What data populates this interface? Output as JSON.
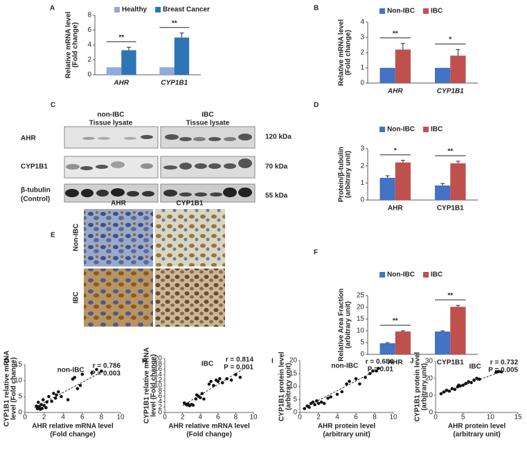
{
  "chart_data": [
    {
      "type": "bar",
      "panel": "A",
      "ylabel": [
        "Relative mRNA level",
        "(Fold change)"
      ],
      "categories": [
        "AHR",
        "CYP1B1"
      ],
      "series": [
        {
          "name": "Healthy",
          "color": "#8faadc",
          "values": [
            1,
            1
          ]
        },
        {
          "name": "Breast Cancer",
          "color": "#2e75b6",
          "values": [
            3.3,
            5.0
          ],
          "errors": [
            0.4,
            0.6
          ]
        }
      ],
      "significance": [
        "**",
        "**"
      ],
      "ylim": [
        0,
        8
      ],
      "yticks": [
        0,
        2,
        4,
        6,
        8
      ]
    },
    {
      "type": "bar",
      "panel": "B",
      "ylabel": [
        "Relative mRNA  level",
        "(Fold change)"
      ],
      "categories": [
        "AHR",
        "CYP1B1"
      ],
      "series": [
        {
          "name": "Non-IBC",
          "color": "#4472c4",
          "values": [
            1,
            1
          ]
        },
        {
          "name": "IBC",
          "color": "#c0504d",
          "values": [
            2.2,
            1.8
          ],
          "errors": [
            0.4,
            0.4
          ]
        }
      ],
      "significance": [
        "**",
        "*"
      ],
      "ylim": [
        0,
        4
      ],
      "yticks": [
        0,
        1,
        2,
        3,
        4
      ]
    },
    {
      "type": "bar",
      "panel": "D",
      "ylabel": [
        "Protein/β-tubulin",
        "(arbitrary unit)"
      ],
      "categories": [
        "AHR",
        "CYP1B1"
      ],
      "series": [
        {
          "name": "Non-IBC",
          "color": "#4472c4",
          "values": [
            1.3,
            0.85
          ],
          "errors": [
            0.12,
            0.12
          ]
        },
        {
          "name": "IBC",
          "color": "#c0504d",
          "values": [
            2.2,
            2.15
          ],
          "errors": [
            0.12,
            0.12
          ]
        }
      ],
      "significance": [
        "*",
        "**"
      ],
      "ylim": [
        0,
        3
      ],
      "yticks": [
        0,
        1,
        2,
        3
      ]
    },
    {
      "type": "bar",
      "panel": "F",
      "ylabel": [
        "Relative Area Fraction",
        "(arbitrary unit)"
      ],
      "categories": [
        "AHR",
        "CYP1B1"
      ],
      "series": [
        {
          "name": "Non-IBC",
          "color": "#4472c4",
          "values": [
            4.7,
            9.7
          ],
          "errors": [
            0.3,
            0.3
          ]
        },
        {
          "name": "IBC",
          "color": "#c0504d",
          "values": [
            9.7,
            20.2
          ],
          "errors": [
            0.3,
            0.6
          ]
        }
      ],
      "significance": [
        "**",
        "**"
      ],
      "ylim": [
        0,
        25
      ],
      "yticks": [
        0,
        5,
        10,
        15,
        20,
        25
      ]
    },
    {
      "type": "scatter",
      "panel": "G",
      "title": "non-IBC",
      "r": "r = 0.786",
      "p": "P = 0.003",
      "xlabel": [
        "AHR relative mRNA level",
        "(Fold change)"
      ],
      "ylabel": [
        "CYP1B1 relative mRNA",
        "level (Fold change)"
      ],
      "x": [
        1.2,
        1.3,
        1.4,
        1.5,
        1.6,
        1.7,
        1.8,
        1.9,
        2.0,
        2.2,
        2.3,
        2.5,
        2.8,
        3.0,
        3.2,
        3.3,
        3.5,
        3.8,
        4.5,
        5.0,
        5.2,
        5.5,
        5.8,
        6.0,
        7.0,
        7.5,
        8.0
      ],
      "values": [
        2,
        1.2,
        3.2,
        1.8,
        1,
        2.5,
        1.3,
        4,
        2.2,
        1.5,
        3.3,
        5,
        3.5,
        6,
        4.5,
        5.5,
        6.5,
        5,
        4,
        10.5,
        11,
        7.5,
        8.5,
        12,
        12.5,
        13.5,
        13
      ],
      "trendline": {
        "x": [
          1,
          8.2
        ],
        "values": [
          1.5,
          13
        ]
      },
      "xlim": [
        0,
        10
      ],
      "xticks": [
        0,
        2,
        4,
        6,
        8,
        10
      ],
      "ylim": [
        0,
        15
      ],
      "yticks": [
        0,
        5,
        10,
        15
      ]
    },
    {
      "type": "scatter",
      "panel": "H",
      "title": "IBC",
      "r": "r = 0.814",
      "p": "P = 0.001",
      "xlabel": [
        "AHR relative mRNA level",
        "(Fold change)"
      ],
      "ylabel": [
        "CYP1B1 relative mRNA",
        "level (Fold change)"
      ],
      "x": [
        2.2,
        2.4,
        2.5,
        2.6,
        2.8,
        3.0,
        3.2,
        3.5,
        3.6,
        3.8,
        4.0,
        4.2,
        4.4,
        5.0,
        5.2,
        5.5,
        5.8,
        6.0,
        6.2,
        6.5,
        7.0,
        7.5,
        8.0,
        8.5
      ],
      "values": [
        3.5,
        3,
        2.8,
        3.2,
        2.5,
        3,
        2.7,
        5,
        6.5,
        6,
        5.5,
        7,
        5,
        10.5,
        11.5,
        10,
        12,
        11.5,
        12.5,
        11,
        12.5,
        12,
        14,
        13
      ],
      "trendline": {
        "x": [
          2,
          8.8
        ],
        "values": [
          2.5,
          16
        ]
      },
      "xlim": [
        0,
        10
      ],
      "xticks": [
        0,
        2,
        4,
        6,
        8,
        10
      ],
      "ylim": [
        0,
        20
      ],
      "yticks": [
        0,
        2,
        4,
        6,
        8,
        10,
        12,
        14,
        16,
        18,
        20
      ]
    },
    {
      "type": "scatter",
      "panel": "I",
      "title": "non-IBC",
      "r": "r = 0.684",
      "p": "P = 0.01",
      "xlabel": [
        "AHR protein level",
        "(arbitrary unit)"
      ],
      "ylabel": [
        "CYP1B1 protein level",
        "(arbitrary unit)"
      ],
      "x": [
        0.5,
        0.8,
        1.0,
        1.2,
        1.4,
        1.6,
        1.8,
        2.0,
        2.3,
        2.6,
        3.0,
        3.3,
        4.0,
        4.5,
        5.0,
        5.3,
        6.0,
        6.4,
        7.0,
        7.5,
        7.8,
        8.2,
        8.4
      ],
      "values": [
        1.5,
        2.5,
        2,
        3.5,
        4,
        3,
        4.5,
        3.5,
        4,
        3.5,
        5.5,
        6,
        7,
        8,
        11,
        12,
        13,
        11,
        13.5,
        15,
        16,
        16,
        17
      ],
      "trendline": {
        "x": [
          0.3,
          8.6
        ],
        "values": [
          1.5,
          17
        ]
      },
      "xlim": [
        0,
        10
      ],
      "xticks": [
        0,
        2,
        4,
        6,
        8,
        10
      ],
      "ylim": [
        0,
        20
      ],
      "yticks": [
        0,
        5,
        10,
        15,
        20
      ]
    },
    {
      "type": "scatter",
      "panel": "J",
      "title": "IBC",
      "r": "r = 0.732",
      "p": "P = 0.005",
      "xlabel": [
        "AHR protein level",
        "(arbitrary unit)"
      ],
      "ylabel": [
        "CYP1B1 protein level",
        "(arbitrary unit)"
      ],
      "x": [
        1.0,
        1.5,
        2.0,
        2.5,
        3.0,
        3.5,
        4.0,
        4.2,
        4.5,
        5.0,
        5.5,
        6.0,
        6.5,
        7.0,
        7.5,
        8.0,
        11.0,
        11.5,
        12.0
      ],
      "values": [
        11,
        12,
        13,
        12.5,
        14,
        13.5,
        15,
        16,
        15.5,
        16,
        17,
        18,
        17.5,
        19,
        20,
        19.5,
        23.5,
        24,
        23.8
      ],
      "trendline": {
        "x": [
          1,
          12
        ],
        "values": [
          11,
          24
        ]
      },
      "xlim": [
        0,
        15
      ],
      "xticks": [
        0,
        5,
        10,
        15
      ],
      "ylim": [
        0,
        30
      ],
      "yticks": [
        0,
        10,
        20,
        30
      ]
    }
  ],
  "blot": {
    "panel": "C",
    "groups": [
      [
        "non-IBC",
        "Tissue lysate"
      ],
      [
        "IBC",
        "Tissue lysate"
      ]
    ],
    "rows": [
      [
        "AHR"
      ],
      [
        "CYP1B1"
      ],
      [
        "β-tubulin",
        "(Control)"
      ]
    ],
    "sizes": [
      "120 kDa",
      "70 kDa",
      "55 kDa"
    ]
  },
  "ihc": {
    "panel": "E",
    "columns": [
      "AHR",
      "CYP1B1"
    ],
    "rows": [
      "Non-IBC",
      "IBC"
    ]
  }
}
